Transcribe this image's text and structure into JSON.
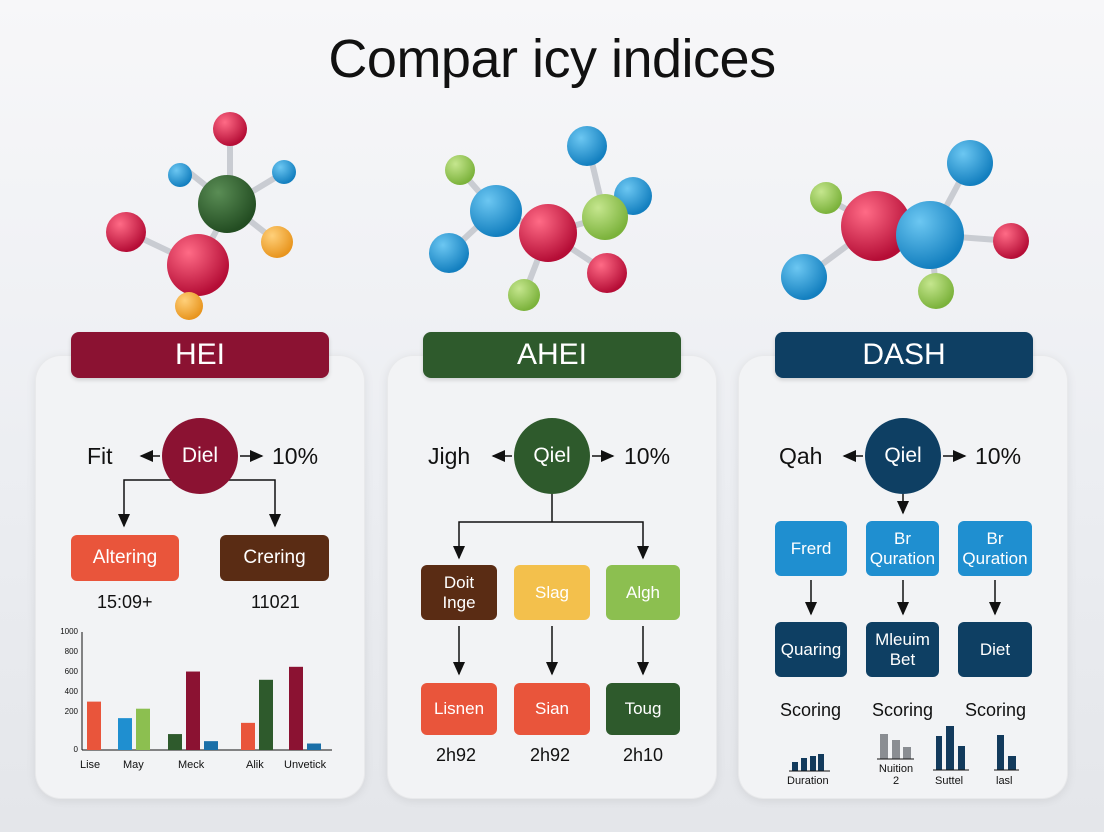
{
  "title": "Compar icy indices",
  "colors": {
    "hei": "#8b1232",
    "ahei": "#2e5a2c",
    "dash": "#0e3f63",
    "orange": "#e9553b",
    "brown": "#5a2c14",
    "yellow": "#f3c04c",
    "lightgreen": "#8cbf50",
    "blue": "#1f8fd0"
  },
  "hei": {
    "banner": "HEI",
    "left_label": "Fit",
    "circle": "Diel",
    "right_label": "10%",
    "box_left": "Altering",
    "box_right": "Crering",
    "num_left": "15:09+",
    "num_right": "11021",
    "chart_ticks": [
      "1000",
      "800",
      "600",
      "400",
      "200",
      "0"
    ],
    "chart_labels": [
      "Lise",
      "May",
      "Meck",
      "Alik",
      "Unvetick"
    ]
  },
  "ahei": {
    "banner": "AHEI",
    "left_label": "Jigh",
    "circle": "Qiel",
    "right_label": "10%",
    "row1": [
      "Doit\nInge",
      "Slag",
      "Algh"
    ],
    "row2": [
      "Lisnen",
      "Sian",
      "Toug"
    ],
    "nums": [
      "2h92",
      "2h92",
      "2h10"
    ]
  },
  "dash": {
    "banner": "DASH",
    "left_label": "Qah",
    "circle": "Qiel",
    "right_label": "10%",
    "row1": [
      "Frerd",
      "Br\nQuration",
      "Br\nQuration"
    ],
    "row2": [
      "Quaring",
      "Mleuim\nBet",
      "Diet"
    ],
    "scoring": [
      "Scoring",
      "Scoring",
      "Scoring"
    ],
    "mini_labels": [
      "Duration",
      "Nuition\n2",
      "Suttel",
      "lasl"
    ]
  },
  "chart_data": {
    "type": "bar",
    "categories": [
      "Lise",
      "May",
      "Meck",
      "Alik",
      "Unvetick"
    ],
    "ylim": [
      0,
      1000
    ],
    "yticks": [
      0,
      200,
      400,
      600,
      800,
      1000
    ],
    "series": [
      {
        "color": "#e9553b",
        "values": [
          410,
          0,
          0,
          230,
          0
        ]
      },
      {
        "color": "#1f8fd0",
        "values": [
          0,
          270,
          0,
          0,
          0
        ]
      },
      {
        "color": "#8cbf50",
        "values": [
          0,
          350,
          0,
          0,
          0
        ]
      },
      {
        "color": "#2e5a2c",
        "values": [
          0,
          0,
          135,
          595,
          0
        ]
      },
      {
        "color": "#8b1232",
        "values": [
          0,
          0,
          665,
          0,
          705
        ]
      },
      {
        "color": "#1a6fa8",
        "values": [
          0,
          0,
          75,
          0,
          55
        ]
      }
    ]
  }
}
